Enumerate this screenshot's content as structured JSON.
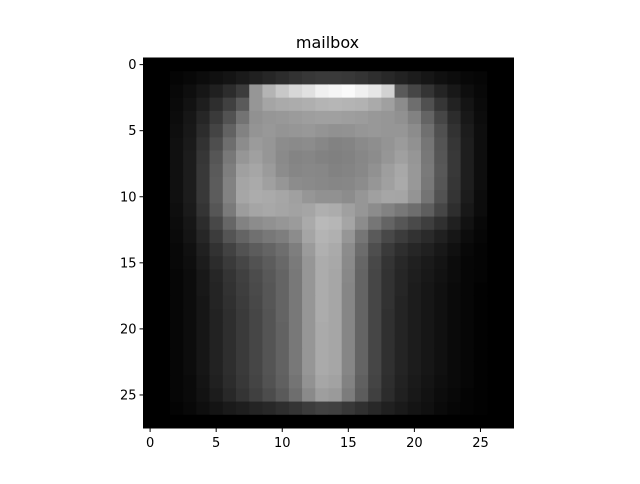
{
  "chart_data": {
    "type": "heatmap",
    "title": "mailbox",
    "colormap": "gray",
    "rows": 28,
    "cols": 28,
    "x_ticks": [
      0,
      5,
      10,
      15,
      20,
      25
    ],
    "y_ticks": [
      0,
      5,
      10,
      15,
      20,
      25
    ],
    "x_tick_labels": [
      "0",
      "5",
      "10",
      "15",
      "20",
      "25"
    ],
    "y_tick_labels": [
      "0",
      "5",
      "10",
      "15",
      "20",
      "25"
    ],
    "xlim": [
      -0.5,
      27.5
    ],
    "ylim": [
      27.5,
      -0.5
    ],
    "grid": false,
    "values_approx": [
      [
        0,
        0,
        0,
        0,
        0,
        0,
        0,
        0,
        0,
        0,
        0,
        0,
        0,
        0,
        0,
        0,
        0,
        0,
        0,
        0,
        0,
        0,
        0,
        0,
        0,
        0,
        0,
        0
      ],
      [
        0,
        0,
        5,
        8,
        12,
        16,
        20,
        26,
        32,
        38,
        44,
        50,
        55,
        58,
        58,
        56,
        52,
        46,
        40,
        34,
        28,
        22,
        16,
        12,
        8,
        6,
        0,
        0
      ],
      [
        0,
        0,
        8,
        14,
        22,
        32,
        44,
        60,
        150,
        180,
        200,
        215,
        225,
        240,
        245,
        250,
        240,
        230,
        210,
        90,
        70,
        52,
        36,
        24,
        14,
        8,
        0,
        0
      ],
      [
        0,
        0,
        10,
        18,
        30,
        46,
        64,
        90,
        150,
        165,
        170,
        172,
        175,
        180,
        182,
        180,
        178,
        170,
        160,
        140,
        110,
        80,
        54,
        34,
        20,
        10,
        0,
        0
      ],
      [
        0,
        0,
        12,
        22,
        38,
        58,
        82,
        115,
        145,
        150,
        152,
        155,
        158,
        160,
        160,
        158,
        156,
        152,
        150,
        145,
        130,
        100,
        70,
        44,
        24,
        12,
        0,
        0
      ],
      [
        0,
        0,
        14,
        24,
        44,
        68,
        98,
        130,
        148,
        152,
        148,
        150,
        152,
        148,
        145,
        146,
        150,
        152,
        150,
        150,
        140,
        112,
        80,
        50,
        28,
        14,
        0,
        0
      ],
      [
        0,
        0,
        16,
        26,
        50,
        78,
        110,
        140,
        155,
        150,
        140,
        138,
        140,
        135,
        130,
        132,
        138,
        142,
        148,
        155,
        145,
        118,
        84,
        54,
        30,
        14,
        0,
        0
      ],
      [
        0,
        0,
        16,
        28,
        54,
        86,
        120,
        150,
        160,
        150,
        138,
        132,
        134,
        130,
        128,
        130,
        135,
        140,
        150,
        160,
        150,
        120,
        86,
        56,
        30,
        14,
        0,
        0
      ],
      [
        0,
        0,
        16,
        28,
        56,
        90,
        126,
        160,
        166,
        155,
        140,
        134,
        136,
        135,
        130,
        132,
        136,
        145,
        158,
        168,
        152,
        122,
        88,
        56,
        30,
        14,
        0,
        0
      ],
      [
        0,
        0,
        16,
        28,
        56,
        92,
        130,
        165,
        170,
        160,
        150,
        140,
        138,
        136,
        134,
        135,
        140,
        150,
        160,
        170,
        152,
        120,
        86,
        54,
        30,
        14,
        0,
        0
      ],
      [
        0,
        0,
        16,
        28,
        56,
        92,
        130,
        166,
        172,
        170,
        166,
        160,
        150,
        145,
        145,
        140,
        150,
        160,
        166,
        165,
        148,
        116,
        82,
        52,
        28,
        12,
        0,
        0
      ],
      [
        0,
        0,
        14,
        26,
        52,
        86,
        122,
        156,
        165,
        168,
        165,
        162,
        165,
        175,
        172,
        160,
        150,
        140,
        130,
        120,
        110,
        94,
        70,
        46,
        24,
        12,
        0,
        0
      ],
      [
        0,
        0,
        12,
        22,
        44,
        72,
        102,
        130,
        140,
        145,
        150,
        155,
        170,
        185,
        182,
        165,
        140,
        118,
        100,
        86,
        74,
        62,
        48,
        32,
        18,
        8,
        0,
        0
      ],
      [
        0,
        0,
        10,
        20,
        38,
        60,
        84,
        100,
        112,
        120,
        126,
        140,
        165,
        180,
        176,
        150,
        118,
        90,
        72,
        60,
        50,
        42,
        32,
        22,
        12,
        6,
        0,
        0
      ],
      [
        0,
        0,
        8,
        16,
        32,
        50,
        66,
        82,
        92,
        100,
        110,
        126,
        155,
        176,
        170,
        140,
        108,
        78,
        58,
        46,
        38,
        32,
        24,
        16,
        8,
        4,
        0,
        0
      ],
      [
        0,
        0,
        8,
        14,
        28,
        44,
        58,
        70,
        82,
        92,
        104,
        122,
        150,
        172,
        168,
        138,
        102,
        72,
        52,
        40,
        32,
        26,
        20,
        12,
        6,
        4,
        0,
        0
      ],
      [
        0,
        0,
        6,
        12,
        24,
        38,
        52,
        64,
        76,
        88,
        100,
        120,
        150,
        172,
        166,
        136,
        100,
        70,
        50,
        38,
        30,
        24,
        18,
        12,
        6,
        4,
        0,
        0
      ],
      [
        0,
        0,
        6,
        12,
        24,
        36,
        50,
        62,
        74,
        86,
        100,
        120,
        150,
        172,
        166,
        134,
        100,
        70,
        50,
        38,
        28,
        22,
        16,
        10,
        6,
        2,
        0,
        0
      ],
      [
        0,
        0,
        6,
        12,
        22,
        36,
        48,
        60,
        72,
        86,
        100,
        120,
        150,
        172,
        166,
        134,
        100,
        70,
        50,
        36,
        28,
        22,
        16,
        10,
        6,
        2,
        0,
        0
      ],
      [
        0,
        0,
        6,
        12,
        22,
        34,
        46,
        58,
        70,
        84,
        100,
        120,
        150,
        172,
        166,
        134,
        100,
        70,
        48,
        36,
        28,
        22,
        16,
        10,
        6,
        2,
        0,
        0
      ],
      [
        0,
        0,
        6,
        12,
        22,
        34,
        46,
        58,
        70,
        84,
        98,
        120,
        150,
        170,
        166,
        134,
        100,
        70,
        48,
        36,
        28,
        22,
        16,
        10,
        6,
        2,
        0,
        0
      ],
      [
        0,
        0,
        6,
        12,
        22,
        34,
        46,
        58,
        70,
        84,
        98,
        120,
        150,
        170,
        166,
        134,
        100,
        70,
        48,
        36,
        28,
        22,
        16,
        10,
        6,
        2,
        0,
        0
      ],
      [
        0,
        0,
        6,
        12,
        22,
        34,
        46,
        58,
        70,
        84,
        98,
        120,
        150,
        170,
        166,
        134,
        100,
        70,
        48,
        36,
        28,
        22,
        16,
        10,
        6,
        2,
        0,
        0
      ],
      [
        0,
        0,
        6,
        12,
        22,
        34,
        46,
        58,
        70,
        84,
        98,
        120,
        150,
        170,
        166,
        134,
        100,
        70,
        48,
        36,
        28,
        22,
        16,
        10,
        6,
        2,
        0,
        0
      ],
      [
        0,
        0,
        6,
        10,
        20,
        32,
        44,
        56,
        68,
        82,
        96,
        116,
        146,
        166,
        162,
        130,
        96,
        68,
        46,
        34,
        26,
        20,
        14,
        10,
        6,
        2,
        0,
        0
      ],
      [
        0,
        0,
        6,
        10,
        18,
        28,
        40,
        52,
        64,
        76,
        90,
        110,
        138,
        158,
        154,
        124,
        92,
        64,
        44,
        32,
        24,
        18,
        12,
        8,
        4,
        2,
        0,
        0
      ],
      [
        0,
        0,
        4,
        8,
        14,
        20,
        26,
        30,
        36,
        40,
        46,
        52,
        60,
        66,
        64,
        56,
        48,
        40,
        32,
        26,
        20,
        16,
        10,
        6,
        4,
        2,
        0,
        0
      ],
      [
        0,
        0,
        0,
        0,
        0,
        0,
        0,
        0,
        0,
        0,
        0,
        0,
        0,
        0,
        0,
        0,
        0,
        0,
        0,
        0,
        0,
        0,
        0,
        0,
        0,
        0,
        0,
        0
      ]
    ]
  }
}
